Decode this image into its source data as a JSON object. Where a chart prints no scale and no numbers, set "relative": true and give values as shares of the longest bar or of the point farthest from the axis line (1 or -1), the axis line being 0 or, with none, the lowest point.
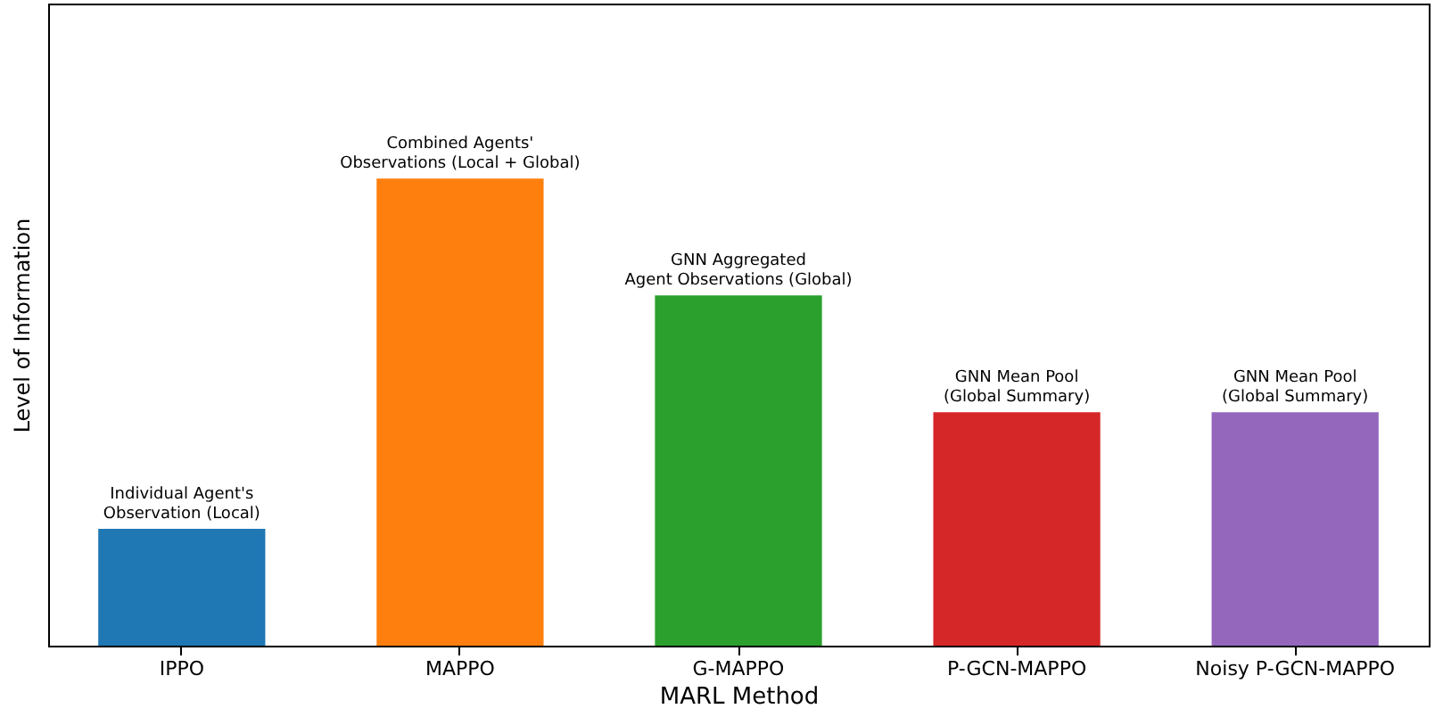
{
  "chart_data": {
    "type": "bar",
    "relative": true,
    "xlabel": "MARL Method",
    "ylabel": "Level of Information",
    "categories": [
      "IPPO",
      "MAPPO",
      "G-MAPPO",
      "P-GCN-MAPPO",
      "Noisy P-GCN-MAPPO"
    ],
    "values": [
      0.25,
      1,
      0.75,
      0.5,
      0.5
    ],
    "colors": [
      "#1f77b4",
      "#ff7f0e",
      "#2ca02c",
      "#d62728",
      "#9467bd"
    ],
    "annotations": [
      {
        "text": "Individual Agent's\nObservation (Local)",
        "x": "IPPO",
        "y": 0.25
      },
      {
        "text": "Combined Agents'\nObservations (Local + Global)",
        "x": "MAPPO",
        "y": 1
      },
      {
        "text": "GNN Aggregated\nAgent Observations (Global)",
        "x": "G-MAPPO",
        "y": 0.75
      },
      {
        "text": "GNN Mean Pool\n(Global Summary)",
        "x": "P-GCN-MAPPO",
        "y": 0.5
      },
      {
        "text": "GNN Mean Pool\n(Global Summary)",
        "x": "Noisy P-GCN-MAPPO",
        "y": 0.5
      }
    ]
  }
}
